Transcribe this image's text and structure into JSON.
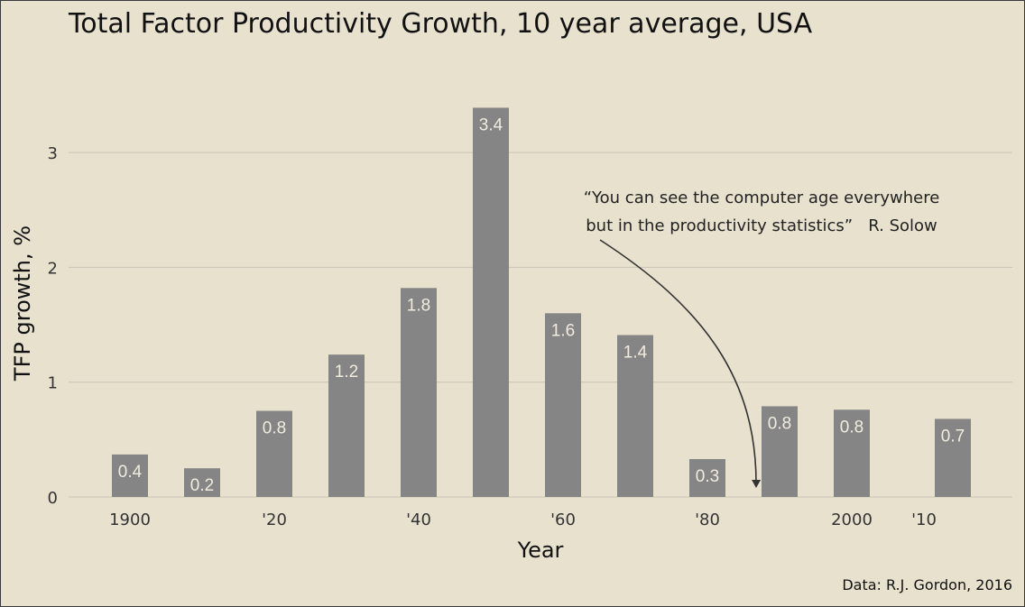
{
  "chart_data": {
    "type": "bar",
    "title": "Total Factor Productivity Growth, 10 year average, USA",
    "xlabel": "Year",
    "ylabel": "TFP growth, %",
    "ylim": [
      0,
      3.55
    ],
    "yticks": [
      0,
      1,
      2,
      3
    ],
    "grid": "horizontal",
    "bars": [
      {
        "x": 1900,
        "value": 0.37,
        "label": "0.4"
      },
      {
        "x": 1910,
        "value": 0.25,
        "label": "0.2"
      },
      {
        "x": 1920,
        "value": 0.75,
        "label": "0.8"
      },
      {
        "x": 1930,
        "value": 1.24,
        "label": "1.2"
      },
      {
        "x": 1940,
        "value": 1.82,
        "label": "1.8"
      },
      {
        "x": 1950,
        "value": 3.39,
        "label": "3.4"
      },
      {
        "x": 1960,
        "value": 1.6,
        "label": "1.6"
      },
      {
        "x": 1970,
        "value": 1.41,
        "label": "1.4"
      },
      {
        "x": 1980,
        "value": 0.33,
        "label": "0.3"
      },
      {
        "x": 1990,
        "value": 0.79,
        "label": "0.8"
      },
      {
        "x": 2000,
        "value": 0.76,
        "label": "0.8"
      },
      {
        "x": 2014,
        "value": 0.68,
        "label": "0.7"
      }
    ],
    "xticks": [
      {
        "x": 1900,
        "label": "1900"
      },
      {
        "x": 1920,
        "label": "'20"
      },
      {
        "x": 1940,
        "label": "'40"
      },
      {
        "x": 1960,
        "label": "'60"
      },
      {
        "x": 1980,
        "label": "'80"
      },
      {
        "x": 2000,
        "label": "2000"
      },
      {
        "x": 2010,
        "label": "'10"
      }
    ],
    "annotation": {
      "line1": "“You can see the computer age everywhere",
      "line2": "but in the productivity statistics”   R. Solow",
      "points_to_x": 1987
    },
    "source": "Data: R.J. Gordon, 2016"
  }
}
